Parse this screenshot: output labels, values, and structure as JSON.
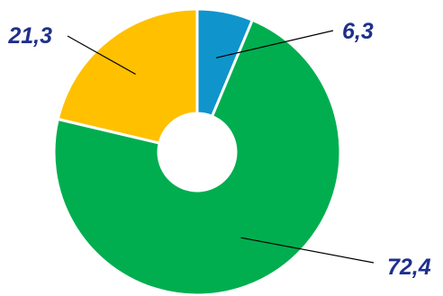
{
  "chart_data": {
    "type": "pie",
    "variant": "donut",
    "title": "",
    "start_angle_deg": 0,
    "direction": "clockwise",
    "slices": [
      {
        "value": 6.3,
        "label": "6,3",
        "color": "#0f95cc"
      },
      {
        "value": 72.4,
        "label": "72,4",
        "color": "#00ad4f"
      },
      {
        "value": 21.3,
        "label": "21,3",
        "color": "#ffc000"
      }
    ],
    "label_color": "#1f2f8c",
    "legend": "none"
  }
}
